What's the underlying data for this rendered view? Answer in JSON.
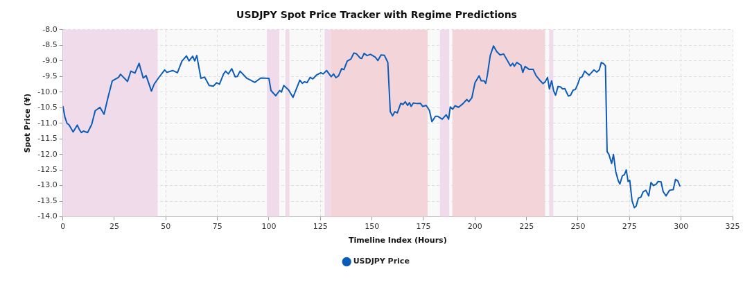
{
  "chart_data": {
    "type": "line",
    "title": "USDJPY Spot Price Tracker with Regime Predictions",
    "xlabel": "Timeline Index (Hours)",
    "ylabel": "Spot Price (¥)",
    "xlim": [
      0,
      325
    ],
    "xticks": [
      0,
      25,
      50,
      75,
      100,
      125,
      150,
      175,
      200,
      225,
      250,
      275,
      300,
      325
    ],
    "ylim": [
      -14,
      -8
    ],
    "yticks": [
      {
        "value": -14,
        "label": "-14.0"
      },
      {
        "value": -13.5,
        "label": "-13.5"
      },
      {
        "value": -13,
        "label": "-13.0"
      },
      {
        "value": -12.5,
        "label": "-12.5"
      },
      {
        "value": -12,
        "label": "-12.0"
      },
      {
        "value": -11.5,
        "label": "-11.5"
      },
      {
        "value": -11,
        "label": "-11.0"
      },
      {
        "value": -10.5,
        "label": "-10.5"
      },
      {
        "value": -10,
        "label": "-10.0"
      },
      {
        "value": -9.5,
        "label": "-9.5"
      },
      {
        "value": -9,
        "label": "-9.0"
      },
      {
        "value": -8.5,
        "label": "-8.5"
      },
      {
        "value": -8,
        "label": "-8.0"
      }
    ],
    "grid": true,
    "legend": "bottom",
    "marker": "none",
    "line_style": "solid",
    "bands": [
      {
        "axis": "x",
        "from": 0,
        "to": 46,
        "color": "#f0dbea"
      },
      {
        "axis": "x",
        "from": 99,
        "to": 105,
        "color": "#f0dbea"
      },
      {
        "axis": "x",
        "from": 108,
        "to": 110,
        "color": "#f0dbea"
      },
      {
        "axis": "x",
        "from": 127,
        "to": 130,
        "color": "#f0dbea"
      },
      {
        "axis": "x",
        "from": 130,
        "to": 177,
        "color": "#f3d5d9"
      },
      {
        "axis": "x",
        "from": 183,
        "to": 187.5,
        "color": "#f0dbea"
      },
      {
        "axis": "x",
        "from": 189,
        "to": 234,
        "color": "#f3d5d9"
      },
      {
        "axis": "x",
        "from": 236,
        "to": 238,
        "color": "#f0dbea"
      }
    ],
    "series": [
      {
        "name": "USDJPY Price",
        "color": "#0a5cb8",
        "x": [
          0,
          1,
          2,
          3,
          5,
          7,
          8,
          9,
          10,
          12,
          14,
          15.7,
          18,
          20,
          22,
          24,
          27,
          28,
          31.4,
          33,
          35,
          37,
          39,
          40.4,
          43,
          44.3,
          46.4,
          49.4,
          50.5,
          53.3,
          55.6,
          57.8,
          60,
          61.2,
          63,
          64,
          65,
          67,
          68.8,
          71,
          73,
          74.7,
          76,
          78,
          79,
          80.3,
          82,
          83.6,
          84.7,
          86,
          89.3,
          93.2,
          96,
          100,
          101,
          103.3,
          105.2,
          106.1,
          107.2,
          109.5,
          111.7,
          115,
          116.2,
          117.3,
          118.5,
          120,
          121.3,
          123,
          125.2,
          126.3,
          128,
          130.2,
          131.4,
          132.5,
          133.8,
          135.3,
          136.4,
          138,
          139.8,
          141.2,
          142.4,
          144.3,
          145.1,
          146.2,
          147.6,
          149.3,
          151.6,
          152.9,
          154.4,
          156,
          157.7,
          158.9,
          160,
          161.1,
          162.3,
          164,
          165,
          166.2,
          167.3,
          168.2,
          169,
          170.1,
          171.8,
          173.5,
          174.6,
          176.3,
          177.9,
          179.1,
          180.8,
          182,
          184.1,
          186,
          187.2,
          188,
          189.2,
          190.3,
          192,
          194.2,
          196,
          197,
          198.5,
          200,
          202,
          203,
          204.4,
          205.2,
          206,
          207.4,
          209,
          210.5,
          212.2,
          213.9,
          217.2,
          218.3,
          219.1,
          220.3,
          222.3,
          223.2,
          224.3,
          226.2,
          228.2,
          229.6,
          231.3,
          233,
          234.1,
          235.2,
          236.1,
          237.2,
          238.2,
          239.1,
          240.3,
          241.6,
          242.5,
          243.6,
          245.3,
          246.4,
          247.6,
          248.7,
          249.8,
          250.9,
          252,
          253.2,
          255.4,
          257.7,
          259.1,
          260.3,
          261.3,
          262.4,
          263.3,
          264.1,
          265,
          266.3,
          267.2,
          268.3,
          269.5,
          270.3,
          271.5,
          272.5,
          273.4,
          274.3,
          275.1,
          276.2,
          277.3,
          278.2,
          279.3,
          280.5,
          281.6,
          282.9,
          284.3,
          285.4,
          286.6,
          288,
          288.8,
          290.3,
          291.3,
          292.7,
          294.4,
          296.2,
          297.3,
          298.4,
          299.5
        ],
        "values": [
          -10.45,
          -10.8,
          -11,
          -11.05,
          -11.28,
          -11.06,
          -11.2,
          -11.3,
          -11.25,
          -11.3,
          -11.04,
          -10.6,
          -10.49,
          -10.71,
          -10.15,
          -9.64,
          -9.53,
          -9.43,
          -9.66,
          -9.33,
          -9.39,
          -9.08,
          -9.55,
          -9.47,
          -9.97,
          -9.75,
          -9.55,
          -9.29,
          -9.37,
          -9.31,
          -9.38,
          -9.01,
          -8.84,
          -9,
          -8.85,
          -9,
          -8.83,
          -9.56,
          -9.52,
          -9.79,
          -9.81,
          -9.7,
          -9.75,
          -9.42,
          -9.33,
          -9.42,
          -9.25,
          -9.51,
          -9.5,
          -9.33,
          -9.56,
          -9.69,
          -9.55,
          -9.56,
          -9.95,
          -10.12,
          -9.95,
          -10,
          -9.79,
          -9.93,
          -10.17,
          -9.62,
          -9.72,
          -9.67,
          -9.7,
          -9.53,
          -9.58,
          -9.46,
          -9.38,
          -9.42,
          -9.31,
          -9.51,
          -9.42,
          -9.54,
          -9.48,
          -9.25,
          -9.28,
          -9.01,
          -8.94,
          -8.75,
          -8.77,
          -8.91,
          -8.92,
          -8.76,
          -8.83,
          -8.79,
          -8.88,
          -8.99,
          -8.81,
          -8.82,
          -9.05,
          -10.63,
          -10.76,
          -10.63,
          -10.67,
          -10.36,
          -10.4,
          -10.31,
          -10.43,
          -10.34,
          -10.46,
          -10.35,
          -10.37,
          -10.36,
          -10.46,
          -10.43,
          -10.59,
          -10.95,
          -10.78,
          -10.78,
          -10.87,
          -10.73,
          -10.87,
          -10.48,
          -10.55,
          -10.44,
          -10.49,
          -10.37,
          -10.24,
          -10.31,
          -10.18,
          -9.7,
          -9.48,
          -9.64,
          -9.64,
          -9.72,
          -9.46,
          -8.83,
          -8.52,
          -8.7,
          -8.81,
          -8.78,
          -9.16,
          -9.08,
          -9.17,
          -9.05,
          -9.14,
          -9.37,
          -9.18,
          -9.27,
          -9.27,
          -9.47,
          -9.61,
          -9.73,
          -9.67,
          -9.53,
          -9.9,
          -9.64,
          -9.97,
          -10.1,
          -9.82,
          -9.84,
          -9.9,
          -9.89,
          -10.13,
          -10.1,
          -9.94,
          -9.92,
          -9.76,
          -9.55,
          -9.51,
          -9.33,
          -9.46,
          -9.29,
          -9.36,
          -9.29,
          -9.05,
          -9.09,
          -9.16,
          -11.91,
          -12,
          -12.29,
          -12,
          -12.55,
          -12.84,
          -12.95,
          -12.69,
          -12.65,
          -12.5,
          -12.87,
          -12.83,
          -13.48,
          -13.71,
          -13.66,
          -13.4,
          -13.37,
          -13.2,
          -13.15,
          -13.33,
          -12.9,
          -13,
          -12.95,
          -12.87,
          -12.88,
          -13.19,
          -13.33,
          -13.15,
          -13.13,
          -12.8,
          -12.85,
          -13.03
        ]
      }
    ]
  }
}
